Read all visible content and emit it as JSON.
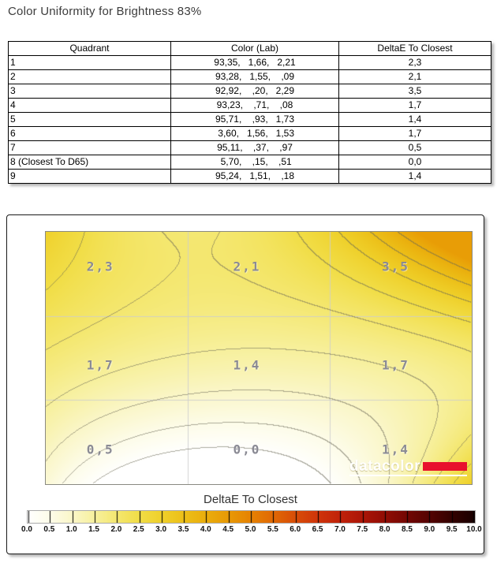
{
  "title": "Color Uniformity for Brightness 83%",
  "table": {
    "columns": [
      "Quadrant",
      "Color (Lab)",
      "DeltaE To Closest"
    ],
    "rows": [
      {
        "quadrant": "1",
        "lab": "93,35,   1,66,   2,21",
        "deltae": "2,3"
      },
      {
        "quadrant": "2",
        "lab": "93,28,   1,55,    ,09",
        "deltae": "2,1"
      },
      {
        "quadrant": "3",
        "lab": "92,92,    ,20,   2,29",
        "deltae": "3,5"
      },
      {
        "quadrant": "4",
        "lab": "93,23,    ,71,    ,08",
        "deltae": "1,7"
      },
      {
        "quadrant": "5",
        "lab": "95,71,    ,93,   1,73",
        "deltae": "1,4"
      },
      {
        "quadrant": "6",
        "lab": " 3,60,   1,56,   1,53",
        "deltae": "1,7"
      },
      {
        "quadrant": "7",
        "lab": "95,11,    ,37,    ,97",
        "deltae": "0,5"
      },
      {
        "quadrant": "8 (Closest To D65)",
        "lab": " 5,70,    ,15,    ,51",
        "deltae": "0,0"
      },
      {
        "quadrant": "9",
        "lab": "95,24,   1,51,    ,18",
        "deltae": "1,4"
      }
    ]
  },
  "chart_data": {
    "type": "heatmap",
    "title": "DeltaE To Closest",
    "rows": 3,
    "cols": 3,
    "values": [
      [
        2.3,
        2.1,
        3.5
      ],
      [
        1.7,
        1.4,
        1.7
      ],
      [
        0.5,
        0.0,
        1.4
      ]
    ],
    "value_labels": [
      [
        "2,3",
        "2,1",
        "3,5"
      ],
      [
        "1,7",
        "1,4",
        "1,7"
      ],
      [
        "0,5",
        "0,0",
        "1,4"
      ]
    ],
    "grid": true,
    "contour_step": 0.5,
    "colorbar": {
      "title": "DeltaE To Closest",
      "min": 0.0,
      "max": 10.0,
      "step": 0.5,
      "tick_labels": [
        "0.0",
        "0.5",
        "1.0",
        "1.5",
        "2.0",
        "2.5",
        "3.0",
        "3.5",
        "4.0",
        "4.5",
        "5.0",
        "5.5",
        "6.0",
        "6.5",
        "7.0",
        "7.5",
        "8.0",
        "8.5",
        "9.0",
        "9.5",
        "10.0"
      ]
    },
    "colormap_stops": [
      [
        0.0,
        "#ffffff"
      ],
      [
        0.5,
        "#fdfce9"
      ],
      [
        1.0,
        "#faf6c8"
      ],
      [
        1.5,
        "#f7f09d"
      ],
      [
        2.0,
        "#f4e76f"
      ],
      [
        2.5,
        "#f1dd46"
      ],
      [
        3.0,
        "#efd02a"
      ],
      [
        3.5,
        "#ecbf18"
      ],
      [
        4.0,
        "#eaad0c"
      ],
      [
        4.5,
        "#e89905"
      ],
      [
        5.0,
        "#e68202"
      ],
      [
        5.5,
        "#e06804"
      ],
      [
        6.0,
        "#d84d08"
      ],
      [
        6.5,
        "#cf340a"
      ],
      [
        7.0,
        "#c02209"
      ],
      [
        7.5,
        "#ab1507"
      ],
      [
        8.0,
        "#910d05"
      ],
      [
        8.5,
        "#730703"
      ],
      [
        9.0,
        "#540302"
      ],
      [
        9.5,
        "#330100"
      ],
      [
        10.0,
        "#190000"
      ]
    ],
    "watermark": "datacolor",
    "brand_red": "#e8112d"
  }
}
